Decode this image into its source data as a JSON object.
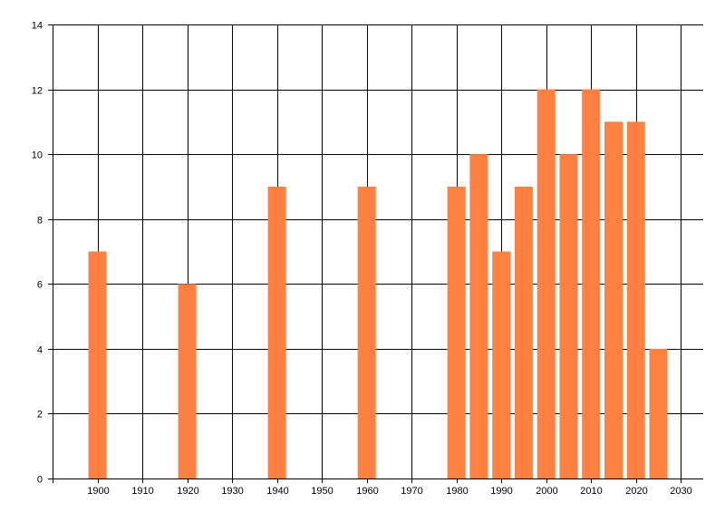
{
  "chart_data": {
    "type": "bar",
    "title": "",
    "xlabel": "",
    "ylabel": "",
    "x": [
      1900,
      1920,
      1940,
      1960,
      1980,
      1985,
      1990,
      1995,
      2000,
      2005,
      2010,
      2015,
      2020,
      2025
    ],
    "values": [
      7,
      6,
      9,
      9,
      9,
      10,
      7,
      9,
      12,
      10,
      12,
      11,
      11,
      4
    ],
    "xlim": [
      1890,
      2035
    ],
    "ylim": [
      0,
      14
    ],
    "x_ticks": [
      1900,
      1910,
      1920,
      1930,
      1940,
      1950,
      1960,
      1970,
      1980,
      1990,
      2000,
      2010,
      2020,
      2030
    ],
    "y_ticks": [
      0,
      2,
      4,
      6,
      8,
      10,
      12,
      14
    ],
    "grid": true,
    "legend": "none",
    "bar_color": "#FF8040",
    "grid_color": "#000000"
  }
}
